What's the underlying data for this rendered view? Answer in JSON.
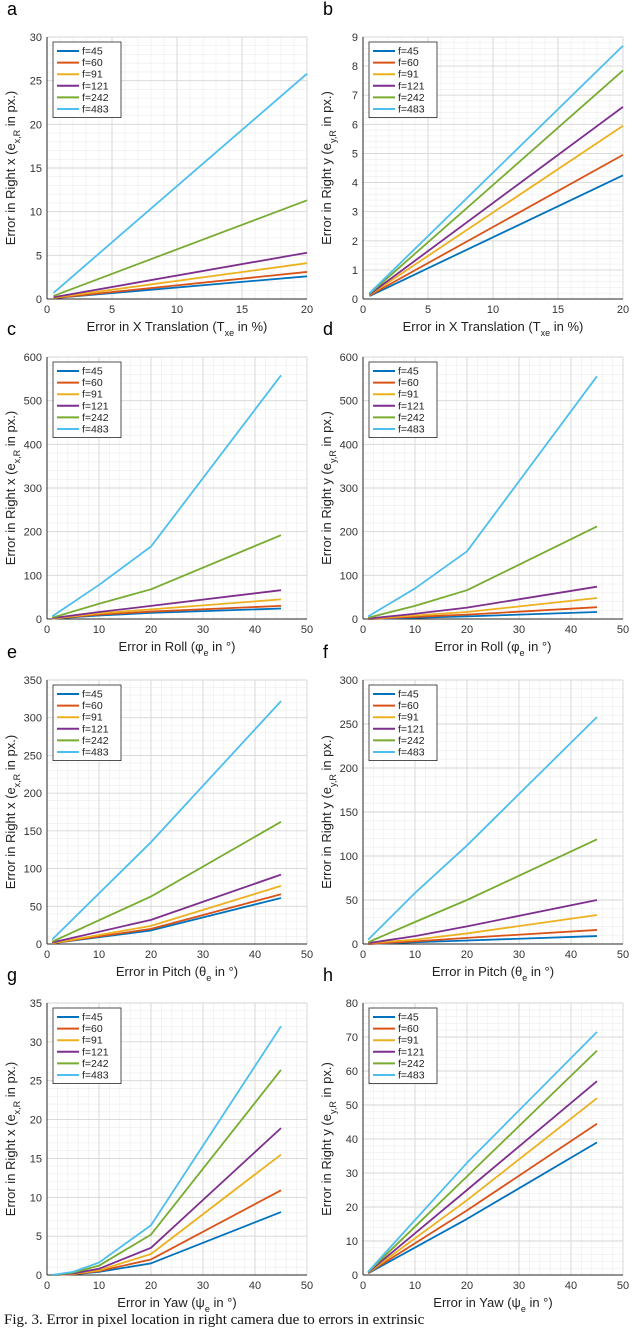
{
  "caption": "Fig. 3.   Error in pixel location in right camera due to errors in extrinsic",
  "colors": {
    "f=45": "#0072BD",
    "f=60": "#D95319",
    "f=91": "#EDB120",
    "f=121": "#7E2F8E",
    "f=242": "#77AC30",
    "f=483": "#4DBEEE"
  },
  "chart_data": [
    {
      "panel": "a",
      "type": "line",
      "xlabel_main": "Error in X Translation (T",
      "xlabel_sub": "xe",
      "xlabel_end": " in %)",
      "ylabel_main": "Error in Right x (e",
      "ylabel_sub": "x,R",
      "ylabel_end": " in px.)",
      "xlim": [
        0,
        20
      ],
      "ylim": [
        0,
        30
      ],
      "xticks": [
        0,
        5,
        10,
        15,
        20
      ],
      "yticks": [
        0,
        5,
        10,
        15,
        20,
        25,
        30
      ],
      "x": [
        0.5,
        20
      ],
      "series": [
        {
          "name": "f=45",
          "values": [
            0.1,
            2.6
          ]
        },
        {
          "name": "f=60",
          "values": [
            0.1,
            3.1
          ]
        },
        {
          "name": "f=91",
          "values": [
            0.15,
            4.1
          ]
        },
        {
          "name": "f=121",
          "values": [
            0.2,
            5.3
          ]
        },
        {
          "name": "f=242",
          "values": [
            0.35,
            11.3
          ]
        },
        {
          "name": "f=483",
          "values": [
            0.7,
            25.8
          ]
        }
      ]
    },
    {
      "panel": "b",
      "type": "line",
      "xlabel_main": "Error in X Translation (T",
      "xlabel_sub": "xe",
      "xlabel_end": " in %)",
      "ylabel_main": "Error in Right y (e",
      "ylabel_sub": "y,R",
      "ylabel_end": " in px.)",
      "xlim": [
        0,
        20
      ],
      "ylim": [
        0,
        9
      ],
      "xticks": [
        0,
        5,
        10,
        15,
        20
      ],
      "yticks": [
        0,
        1,
        2,
        3,
        4,
        5,
        6,
        7,
        8,
        9
      ],
      "x": [
        0.5,
        20
      ],
      "series": [
        {
          "name": "f=45",
          "values": [
            0.1,
            4.25
          ]
        },
        {
          "name": "f=60",
          "values": [
            0.12,
            4.95
          ]
        },
        {
          "name": "f=91",
          "values": [
            0.14,
            5.95
          ]
        },
        {
          "name": "f=121",
          "values": [
            0.16,
            6.6
          ]
        },
        {
          "name": "f=242",
          "values": [
            0.18,
            7.85
          ]
        },
        {
          "name": "f=483",
          "values": [
            0.2,
            8.7
          ]
        }
      ]
    },
    {
      "panel": "c",
      "type": "line",
      "xlabel_main": "Error in Roll (φ",
      "xlabel_sub": "e",
      "xlabel_end": " in °)",
      "ylabel_main": "Error in Right x (e",
      "ylabel_sub": "x,R",
      "ylabel_end": " in px.)",
      "xlim": [
        0,
        50
      ],
      "ylim": [
        0,
        600
      ],
      "xticks": [
        0,
        10,
        20,
        30,
        40,
        50
      ],
      "yticks": [
        0,
        100,
        200,
        300,
        400,
        500,
        600
      ],
      "x": [
        1,
        10,
        20,
        45
      ],
      "series": [
        {
          "name": "f=45",
          "values": [
            1,
            8,
            14,
            24
          ]
        },
        {
          "name": "f=60",
          "values": [
            1,
            10,
            17,
            30
          ]
        },
        {
          "name": "f=91",
          "values": [
            1,
            13,
            22,
            45
          ]
        },
        {
          "name": "f=121",
          "values": [
            2,
            16,
            30,
            66
          ]
        },
        {
          "name": "f=242",
          "values": [
            3,
            35,
            68,
            192
          ]
        },
        {
          "name": "f=483",
          "values": [
            6,
            78,
            166,
            558
          ]
        }
      ]
    },
    {
      "panel": "d",
      "type": "line",
      "xlabel_main": "Error in Roll (φ",
      "xlabel_sub": "e",
      "xlabel_end": " in °)",
      "ylabel_main": "Error in Right y (e",
      "ylabel_sub": "y,R",
      "ylabel_end": " in px.)",
      "xlim": [
        0,
        50
      ],
      "ylim": [
        0,
        600
      ],
      "xticks": [
        0,
        10,
        20,
        30,
        40,
        50
      ],
      "yticks": [
        0,
        100,
        200,
        300,
        400,
        500,
        600
      ],
      "x": [
        1,
        10,
        20,
        45
      ],
      "series": [
        {
          "name": "f=45",
          "values": [
            0,
            3,
            6,
            16
          ]
        },
        {
          "name": "f=60",
          "values": [
            0,
            5,
            10,
            27
          ]
        },
        {
          "name": "f=91",
          "values": [
            1,
            8,
            16,
            48
          ]
        },
        {
          "name": "f=121",
          "values": [
            1,
            12,
            26,
            74
          ]
        },
        {
          "name": "f=242",
          "values": [
            3,
            30,
            66,
            212
          ]
        },
        {
          "name": "f=483",
          "values": [
            6,
            70,
            155,
            556
          ]
        }
      ]
    },
    {
      "panel": "e",
      "type": "line",
      "xlabel_main": "Error in Pitch (θ",
      "xlabel_sub": "e",
      "xlabel_end": " in °)",
      "ylabel_main": "Error in Right x (e",
      "ylabel_sub": "x,R",
      "ylabel_end": " in px.)",
      "xlim": [
        0,
        50
      ],
      "ylim": [
        0,
        350
      ],
      "xticks": [
        0,
        10,
        20,
        30,
        40,
        50
      ],
      "yticks": [
        0,
        50,
        100,
        150,
        200,
        250,
        300,
        350
      ],
      "x": [
        1,
        20,
        45
      ],
      "series": [
        {
          "name": "f=45",
          "values": [
            1,
            18,
            61
          ]
        },
        {
          "name": "f=60",
          "values": [
            1,
            20,
            66
          ]
        },
        {
          "name": "f=91",
          "values": [
            1,
            24,
            77
          ]
        },
        {
          "name": "f=121",
          "values": [
            2,
            32,
            92
          ]
        },
        {
          "name": "f=242",
          "values": [
            3,
            63,
            162
          ]
        },
        {
          "name": "f=483",
          "values": [
            6,
            135,
            322
          ]
        }
      ]
    },
    {
      "panel": "f",
      "type": "line",
      "xlabel_main": "Error in Pitch (θ",
      "xlabel_sub": "e",
      "xlabel_end": " in °)",
      "ylabel_main": "Error in Right y (e",
      "ylabel_sub": "y,R",
      "ylabel_end": " in px.)",
      "xlim": [
        0,
        50
      ],
      "ylim": [
        0,
        300
      ],
      "xticks": [
        0,
        10,
        20,
        30,
        40,
        50
      ],
      "yticks": [
        0,
        50,
        100,
        150,
        200,
        250,
        300
      ],
      "x": [
        1,
        10,
        20,
        45
      ],
      "series": [
        {
          "name": "f=45",
          "values": [
            0,
            2,
            4,
            9
          ]
        },
        {
          "name": "f=60",
          "values": [
            0,
            3,
            7,
            16
          ]
        },
        {
          "name": "f=91",
          "values": [
            1,
            5,
            12,
            33
          ]
        },
        {
          "name": "f=121",
          "values": [
            1,
            9,
            20,
            50
          ]
        },
        {
          "name": "f=242",
          "values": [
            2,
            25,
            50,
            119
          ]
        },
        {
          "name": "f=483",
          "values": [
            5,
            58,
            112,
            258
          ]
        }
      ]
    },
    {
      "panel": "g",
      "type": "line",
      "xlabel_main": "Error in Yaw (ψ",
      "xlabel_sub": "e",
      "xlabel_end": " in °)",
      "ylabel_main": "Error in Right x (e",
      "ylabel_sub": "x,R",
      "ylabel_end": " in px.)",
      "xlim": [
        0,
        50
      ],
      "ylim": [
        0,
        35
      ],
      "xticks": [
        0,
        10,
        20,
        30,
        40,
        50
      ],
      "yticks": [
        0,
        5,
        10,
        15,
        20,
        25,
        30,
        35
      ],
      "x": [
        1,
        5,
        10,
        20,
        45
      ],
      "series": [
        {
          "name": "f=45",
          "values": [
            0,
            0.1,
            0.4,
            1.5,
            8.1
          ]
        },
        {
          "name": "f=60",
          "values": [
            0,
            0.1,
            0.5,
            2.0,
            10.9
          ]
        },
        {
          "name": "f=91",
          "values": [
            0,
            0.15,
            0.6,
            2.7,
            15.5
          ]
        },
        {
          "name": "f=121",
          "values": [
            0,
            0.2,
            0.8,
            3.5,
            18.9
          ]
        },
        {
          "name": "f=242",
          "values": [
            0,
            0.3,
            1.2,
            5.2,
            26.4
          ]
        },
        {
          "name": "f=483",
          "values": [
            0,
            0.4,
            1.6,
            6.4,
            32.0
          ]
        }
      ]
    },
    {
      "panel": "h",
      "type": "line",
      "xlabel_main": "Error in Yaw (ψ",
      "xlabel_sub": "e",
      "xlabel_end": " in °)",
      "ylabel_main": "Error in Right y (e",
      "ylabel_sub": "y,R",
      "ylabel_end": " in px.)",
      "xlim": [
        0,
        50
      ],
      "ylim": [
        0,
        80
      ],
      "xticks": [
        0,
        10,
        20,
        30,
        40,
        50
      ],
      "yticks": [
        0,
        10,
        20,
        30,
        40,
        50,
        60,
        70,
        80
      ],
      "x": [
        1,
        20,
        45
      ],
      "series": [
        {
          "name": "f=45",
          "values": [
            0.5,
            16.5,
            39
          ]
        },
        {
          "name": "f=60",
          "values": [
            0.6,
            19,
            44.5
          ]
        },
        {
          "name": "f=91",
          "values": [
            0.7,
            22,
            52
          ]
        },
        {
          "name": "f=121",
          "values": [
            0.8,
            25,
            57
          ]
        },
        {
          "name": "f=242",
          "values": [
            0.9,
            29,
            66
          ]
        },
        {
          "name": "f=483",
          "values": [
            1.0,
            33,
            71.5
          ]
        }
      ]
    }
  ]
}
